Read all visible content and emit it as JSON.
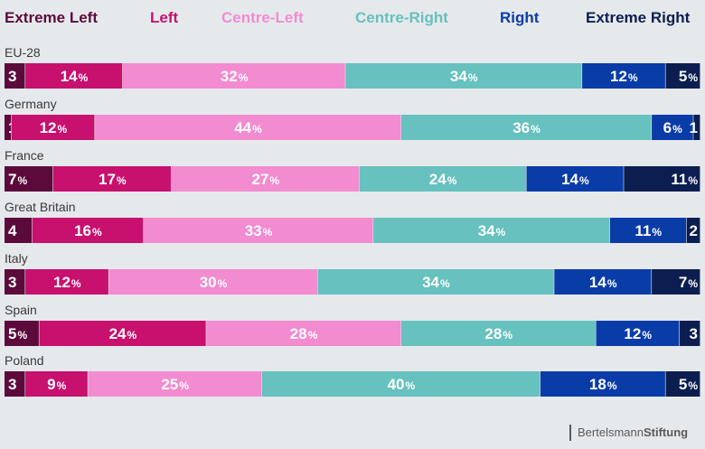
{
  "chart_data": {
    "type": "bar",
    "orientation": "horizontal",
    "stacked": true,
    "categories": [
      "EU-28",
      "Germany",
      "France",
      "Great Britain",
      "Italy",
      "Spain",
      "Poland"
    ],
    "series": [
      {
        "name": "Extreme Left",
        "color": "#5c0a3c",
        "values": [
          3,
          1,
          7,
          4,
          3,
          5,
          3
        ],
        "labels": [
          "3",
          "1",
          "7%",
          "4",
          "3",
          "5%",
          "3"
        ]
      },
      {
        "name": "Left",
        "color": "#c8106e",
        "values": [
          14,
          12,
          17,
          16,
          12,
          24,
          9
        ],
        "labels": [
          "14%",
          "12%",
          "17%",
          "16%",
          "12%",
          "24%",
          "9%"
        ]
      },
      {
        "name": "Centre-Left",
        "color": "#f28bd0",
        "values": [
          32,
          44,
          27,
          33,
          30,
          28,
          25
        ],
        "labels": [
          "32%",
          "44%",
          "27%",
          "33%",
          "30%",
          "28%",
          "25%"
        ]
      },
      {
        "name": "Centre-Right",
        "color": "#66c1bf",
        "values": [
          34,
          36,
          24,
          34,
          34,
          28,
          40
        ],
        "labels": [
          "34%",
          "36%",
          "24%",
          "34%",
          "34%",
          "28%",
          "40%"
        ]
      },
      {
        "name": "Right",
        "color": "#0a3ca8",
        "values": [
          12,
          6,
          14,
          11,
          14,
          12,
          18
        ],
        "labels": [
          "12%",
          "6%",
          "14%",
          "11%",
          "14%",
          "12%",
          "18%"
        ]
      },
      {
        "name": "Extreme Right",
        "color": "#0c1e50",
        "values": [
          5,
          1,
          11,
          2,
          7,
          3,
          5
        ],
        "labels": [
          "5%",
          "1",
          "11%",
          "2",
          "7%",
          "3",
          "5%"
        ]
      }
    ],
    "legend_position": "top",
    "grid": false
  },
  "footer": {
    "brand_regular": "Bertelsmann",
    "brand_bold": "Stiftung"
  }
}
